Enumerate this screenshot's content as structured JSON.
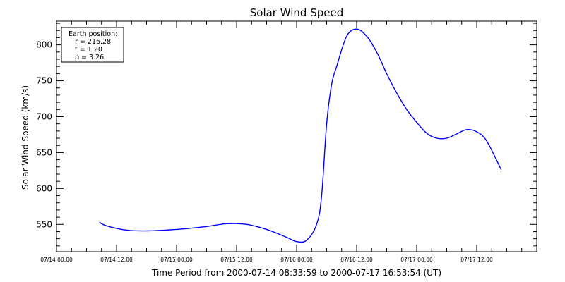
{
  "chart_data": {
    "type": "line",
    "title": "Solar Wind Speed",
    "xlabel": "Time Period from 2000-07-14 08:33:59 to 2000-07-17 16:53:54 (UT)",
    "ylabel": "Solar Wind Speed (km/s)",
    "xlim": [
      "2000-07-14 00:00",
      "2000-07-18 00:00"
    ],
    "ylim": [
      512,
      833
    ],
    "x_ticks": [
      {
        "x": "2000-07-14 00:00",
        "label": "07/14 00:00"
      },
      {
        "x": "2000-07-14 12:00",
        "label": "07/14 12:00"
      },
      {
        "x": "2000-07-15 00:00",
        "label": "07/15 00:00"
      },
      {
        "x": "2000-07-15 12:00",
        "label": "07/15 12:00"
      },
      {
        "x": "2000-07-16 00:00",
        "label": "07/16 00:00"
      },
      {
        "x": "2000-07-16 12:00",
        "label": "07/16 12:00"
      },
      {
        "x": "2000-07-17 00:00",
        "label": "07/17 00:00"
      },
      {
        "x": "2000-07-17 12:00",
        "label": "07/17 12:00"
      }
    ],
    "y_ticks": [
      550,
      600,
      650,
      700,
      750,
      800
    ],
    "grid": false,
    "legend": "none",
    "series": [
      {
        "color": "#0000ff",
        "points": [
          {
            "x": "2000-07-14 08:34",
            "y": 553
          },
          {
            "x": "2000-07-14 10:00",
            "y": 548
          },
          {
            "x": "2000-07-14 14:00",
            "y": 542
          },
          {
            "x": "2000-07-14 18:00",
            "y": 541
          },
          {
            "x": "2000-07-15 00:00",
            "y": 543
          },
          {
            "x": "2000-07-15 06:00",
            "y": 547
          },
          {
            "x": "2000-07-15 10:00",
            "y": 551
          },
          {
            "x": "2000-07-15 14:00",
            "y": 550
          },
          {
            "x": "2000-07-15 18:00",
            "y": 543
          },
          {
            "x": "2000-07-15 22:00",
            "y": 532
          },
          {
            "x": "2000-07-16 00:00",
            "y": 526
          },
          {
            "x": "2000-07-16 02:00",
            "y": 528
          },
          {
            "x": "2000-07-16 04:00",
            "y": 550
          },
          {
            "x": "2000-07-16 05:00",
            "y": 590
          },
          {
            "x": "2000-07-16 06:00",
            "y": 690
          },
          {
            "x": "2000-07-16 07:00",
            "y": 745
          },
          {
            "x": "2000-07-16 08:00",
            "y": 770
          },
          {
            "x": "2000-07-16 10:00",
            "y": 812
          },
          {
            "x": "2000-07-16 12:00",
            "y": 822
          },
          {
            "x": "2000-07-16 14:00",
            "y": 812
          },
          {
            "x": "2000-07-16 16:00",
            "y": 790
          },
          {
            "x": "2000-07-16 18:00",
            "y": 760
          },
          {
            "x": "2000-07-16 20:00",
            "y": 733
          },
          {
            "x": "2000-07-16 22:00",
            "y": 710
          },
          {
            "x": "2000-07-17 00:00",
            "y": 692
          },
          {
            "x": "2000-07-17 02:00",
            "y": 677
          },
          {
            "x": "2000-07-17 04:00",
            "y": 670
          },
          {
            "x": "2000-07-17 06:00",
            "y": 670
          },
          {
            "x": "2000-07-17 08:00",
            "y": 676
          },
          {
            "x": "2000-07-17 10:00",
            "y": 682
          },
          {
            "x": "2000-07-17 12:00",
            "y": 679
          },
          {
            "x": "2000-07-17 14:00",
            "y": 666
          },
          {
            "x": "2000-07-17 16:54",
            "y": 626
          }
        ]
      }
    ],
    "annotation": {
      "heading": "Earth position:",
      "lines": [
        "r = 216.28",
        "t = 1.20",
        "p = 3.26"
      ],
      "placement": "top-left"
    }
  }
}
